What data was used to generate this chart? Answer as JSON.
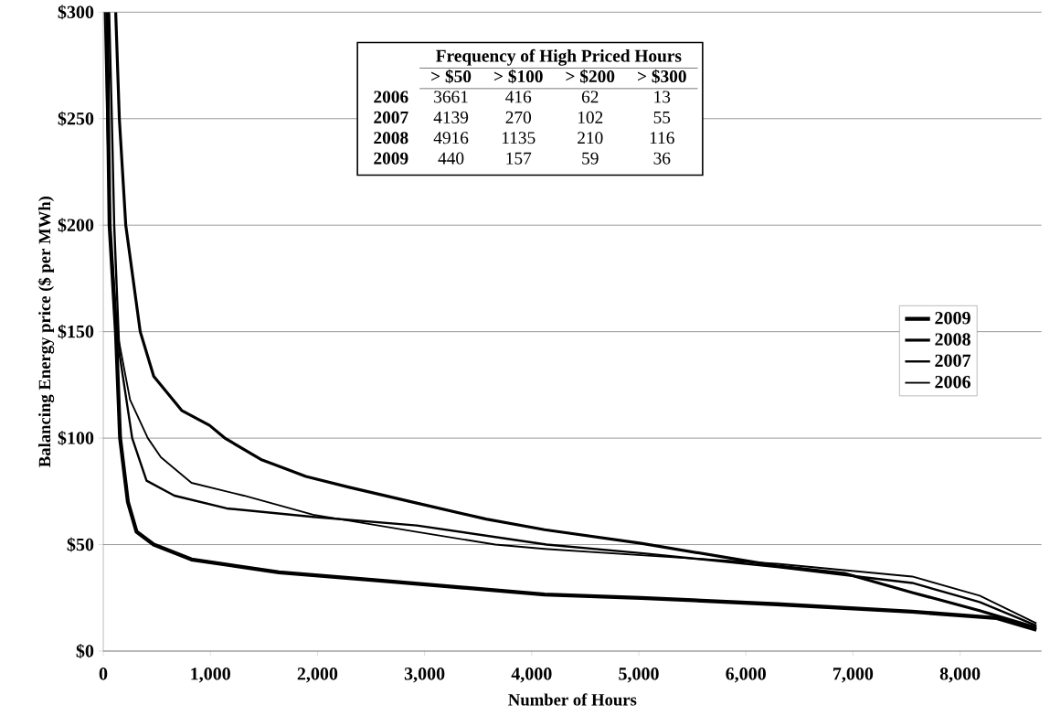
{
  "chart_data": {
    "type": "line",
    "xlabel": "Number of Hours",
    "ylabel": "Balancing Energy price ($ per MWh)",
    "xlim": [
      0,
      8760
    ],
    "ylim": [
      0,
      300
    ],
    "xticks": [
      0,
      {
        "value": 1000,
        "label": "1,000"
      },
      {
        "value": 2000,
        "label": "2,000"
      },
      {
        "value": 3000,
        "label": "3,000"
      },
      {
        "value": 4000,
        "label": "4,000"
      },
      {
        "value": 5000,
        "label": "5,000"
      },
      {
        "value": 6000,
        "label": "6,000"
      },
      {
        "value": 7000,
        "label": "7,000"
      },
      {
        "value": 8000,
        "label": "8,000"
      }
    ],
    "yticks": [
      {
        "value": 0,
        "label": "$0"
      },
      {
        "value": 50,
        "label": "$50"
      },
      {
        "value": 100,
        "label": "$100"
      },
      {
        "value": 150,
        "label": "$150"
      },
      {
        "value": 200,
        "label": "$200"
      },
      {
        "value": 250,
        "label": "$250"
      },
      {
        "value": 300,
        "label": "$300"
      }
    ],
    "grid": "y",
    "legend": "right",
    "marker": "none",
    "line_style": "solid",
    "series": [
      {
        "name": "2009",
        "color": "#000000",
        "x": [
          36,
          45,
          59,
          118,
          157,
          230,
          311,
          471,
          824,
          1640,
          2607,
          4121,
          5021,
          6291,
          7553,
          8343,
          8713
        ],
        "values": [
          300,
          250,
          200,
          150,
          100,
          70,
          56,
          50,
          43,
          37,
          33,
          26.6,
          25,
          22,
          18.5,
          15.5,
          10
        ]
      },
      {
        "name": "2008",
        "color": "#000000",
        "x": [
          116,
          150,
          210,
          345,
          471,
          732,
          992,
          1135,
          1472,
          1892,
          2288,
          2927,
          3575,
          4121,
          5021,
          6291,
          6922,
          7553,
          8183,
          8713
        ],
        "values": [
          300,
          250,
          200,
          150,
          129,
          113,
          106,
          100,
          90,
          82,
          77,
          69.5,
          62,
          57,
          50.6,
          40,
          36.5,
          27.5,
          19,
          11
        ]
      },
      {
        "name": "2007",
        "color": "#000000",
        "x": [
          55,
          80,
          102,
          150,
          270,
          404,
          664,
          1152,
          1960,
          2927,
          4139,
          5021,
          6291,
          7553,
          8183,
          8713
        ],
        "values": [
          300,
          250,
          200,
          140,
          100,
          80,
          73,
          67,
          63,
          59,
          50,
          46,
          39.5,
          32,
          23,
          12
        ]
      },
      {
        "name": "2006",
        "color": "#000000",
        "x": [
          13,
          35,
          62,
          130,
          250,
          416,
          538,
          824,
          1312,
          1960,
          2927,
          3661,
          4121,
          5021,
          6291,
          7553,
          8183,
          8713
        ],
        "values": [
          300,
          250,
          200,
          150,
          118,
          100,
          91,
          79,
          73,
          64,
          56,
          50,
          48,
          45,
          41,
          35,
          26,
          13
        ]
      }
    ],
    "annotations": [
      "Frequency of High Priced Hours",
      "> $50",
      "> $100",
      "> $200",
      "> $300",
      "2006",
      "3661",
      "416",
      "62",
      "13",
      "2007",
      "4139",
      "270",
      "102",
      "55",
      "2008",
      "4916",
      "1135",
      "210",
      "116",
      "2009",
      "440",
      "157",
      "59",
      "36"
    ]
  }
}
